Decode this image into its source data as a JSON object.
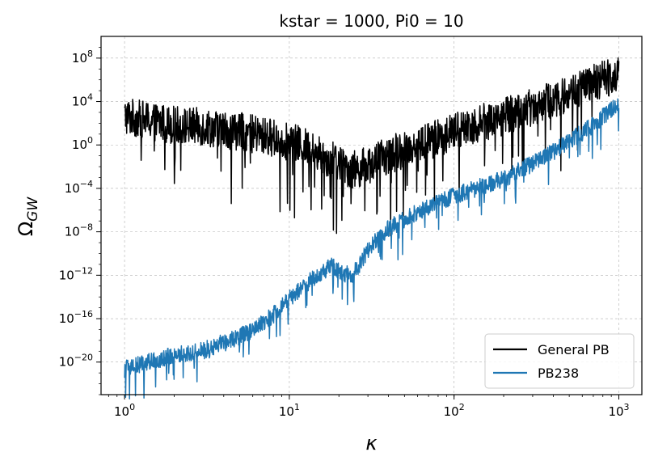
{
  "chart_data": {
    "type": "line",
    "title": "kstar = 1000, Pi0 = 10",
    "xlabel": "κ",
    "ylabel_main": "Ω",
    "ylabel_sub": "GW",
    "xscale": "log",
    "yscale": "log",
    "xlim": [
      0.72,
      1380
    ],
    "ylim": [
      1e-23,
      10000000000.0
    ],
    "x_ticks": [
      {
        "value": 1,
        "base": "10",
        "exp": "0"
      },
      {
        "value": 10,
        "base": "10",
        "exp": "1"
      },
      {
        "value": 100,
        "base": "10",
        "exp": "2"
      },
      {
        "value": 1000,
        "base": "10",
        "exp": "3"
      }
    ],
    "y_ticks": [
      {
        "value": 100000000.0,
        "base": "10",
        "exp": "8"
      },
      {
        "value": 10000.0,
        "base": "10",
        "exp": "4"
      },
      {
        "value": 1,
        "base": "10",
        "exp": "0"
      },
      {
        "value": 0.0001,
        "base": "10",
        "exp": "−4"
      },
      {
        "value": 1e-08,
        "base": "10",
        "exp": "−8"
      },
      {
        "value": 1e-12,
        "base": "10",
        "exp": "−12"
      },
      {
        "value": 1e-16,
        "base": "10",
        "exp": "−16"
      },
      {
        "value": 1e-20,
        "base": "10",
        "exp": "−20"
      }
    ],
    "grid": true,
    "legend_position": "bottom-right",
    "series": [
      {
        "name": "General PB",
        "color": "#000000",
        "trend_x": [
          1,
          1.5,
          2,
          3,
          5,
          8,
          12,
          18,
          24,
          30,
          50,
          80,
          120,
          200,
          400,
          700,
          1000
        ],
        "trend_log10_y": [
          3,
          2.5,
          2.2,
          2,
          1.6,
          1,
          0.3,
          -1,
          -2,
          -1.5,
          0,
          1,
          2,
          3,
          4.5,
          6,
          7
        ],
        "noise_dex": 2.2
      },
      {
        "name": "PB238",
        "color": "#1f77b4",
        "trend_x": [
          1,
          1.5,
          2,
          3,
          4,
          6,
          8,
          10,
          13,
          18,
          24,
          30,
          40,
          60,
          100,
          200,
          400,
          700,
          1000
        ],
        "trend_log10_y": [
          -20.5,
          -19.7,
          -19.2,
          -18.8,
          -18,
          -17,
          -15.5,
          -14,
          -12.5,
          -11,
          -12,
          -9.5,
          -7.5,
          -6,
          -4.5,
          -3,
          -0.5,
          2,
          4
        ],
        "noise_dex": 1.0
      }
    ]
  }
}
